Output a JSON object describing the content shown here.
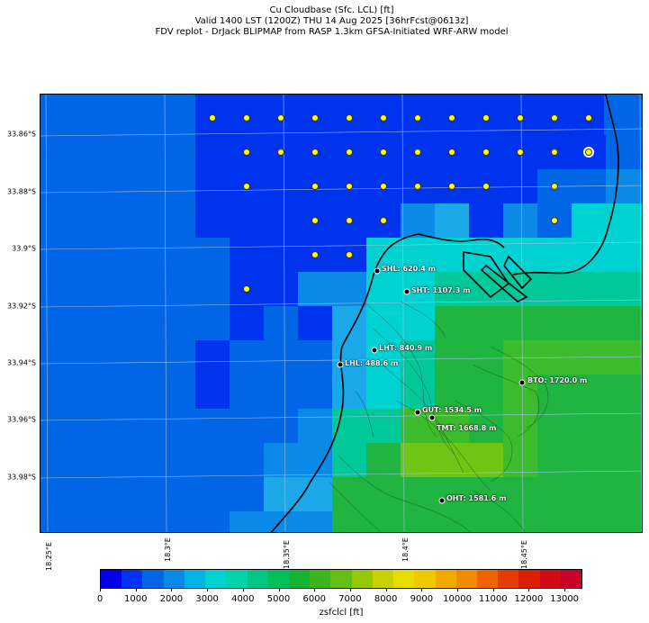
{
  "header": {
    "line1": "Cu Cloudbase (Sfc. LCL) [ft]",
    "line2": "Valid 1400 LST (1200Z) THU 14 Aug 2025 [36hrFcst@0613z]",
    "line3": "FDV replot - DrJack BLIPMAP from RASP 1.3km GFSA-Initiated WRF-ARW model"
  },
  "map": {
    "lat_labels": [
      "33.86°S",
      "33.88°S",
      "33.9°S",
      "33.92°S",
      "33.94°S",
      "33.96°S",
      "33.98°S"
    ],
    "lon_labels": [
      "18.25°E",
      "18.3°E",
      "18.35°E",
      "18.4°E",
      "18.45°E"
    ],
    "sites": [
      {
        "label": "SHL: 620.4 m"
      },
      {
        "label": "SHT: 1107.3 m"
      },
      {
        "label": "LHT: 840.9 m"
      },
      {
        "label": "LHL: 488.6 m"
      },
      {
        "label": "BTO: 1720.0 m"
      },
      {
        "label": "GUT: 1534.5 m"
      },
      {
        "label": "TMT: 1668.8 m"
      },
      {
        "label": "OHT: 1581.6 m"
      }
    ],
    "palette": {
      "ocean": "#0066e6",
      "deep": "#0033ee",
      "mid": "#0a8ae6",
      "shallow": "#1aa8e8",
      "cyan": "#00d2d2",
      "teal": "#00c89a",
      "green": "#20b440",
      "lightgreen": "#3cbc2c",
      "yellowgreen": "#70c414",
      "marker": "#ffff00"
    }
  },
  "colorbar": {
    "label": "zsfclcl [ft]",
    "ticks": [
      "0",
      "1000",
      "2000",
      "3000",
      "4000",
      "5000",
      "6000",
      "7000",
      "8000",
      "9000",
      "10000",
      "11000",
      "12000",
      "13000"
    ],
    "colors": [
      "#0000e6",
      "#0033ee",
      "#0066e6",
      "#0a8ae6",
      "#00b4e6",
      "#00d2d2",
      "#00d2aa",
      "#00c882",
      "#00be5a",
      "#14b432",
      "#3cb41e",
      "#64be14",
      "#96c80a",
      "#c8d200",
      "#e6dc00",
      "#f0c800",
      "#f0aa00",
      "#f08c00",
      "#f06400",
      "#e63c00",
      "#dc1e00",
      "#d20a14",
      "#c80028"
    ]
  }
}
